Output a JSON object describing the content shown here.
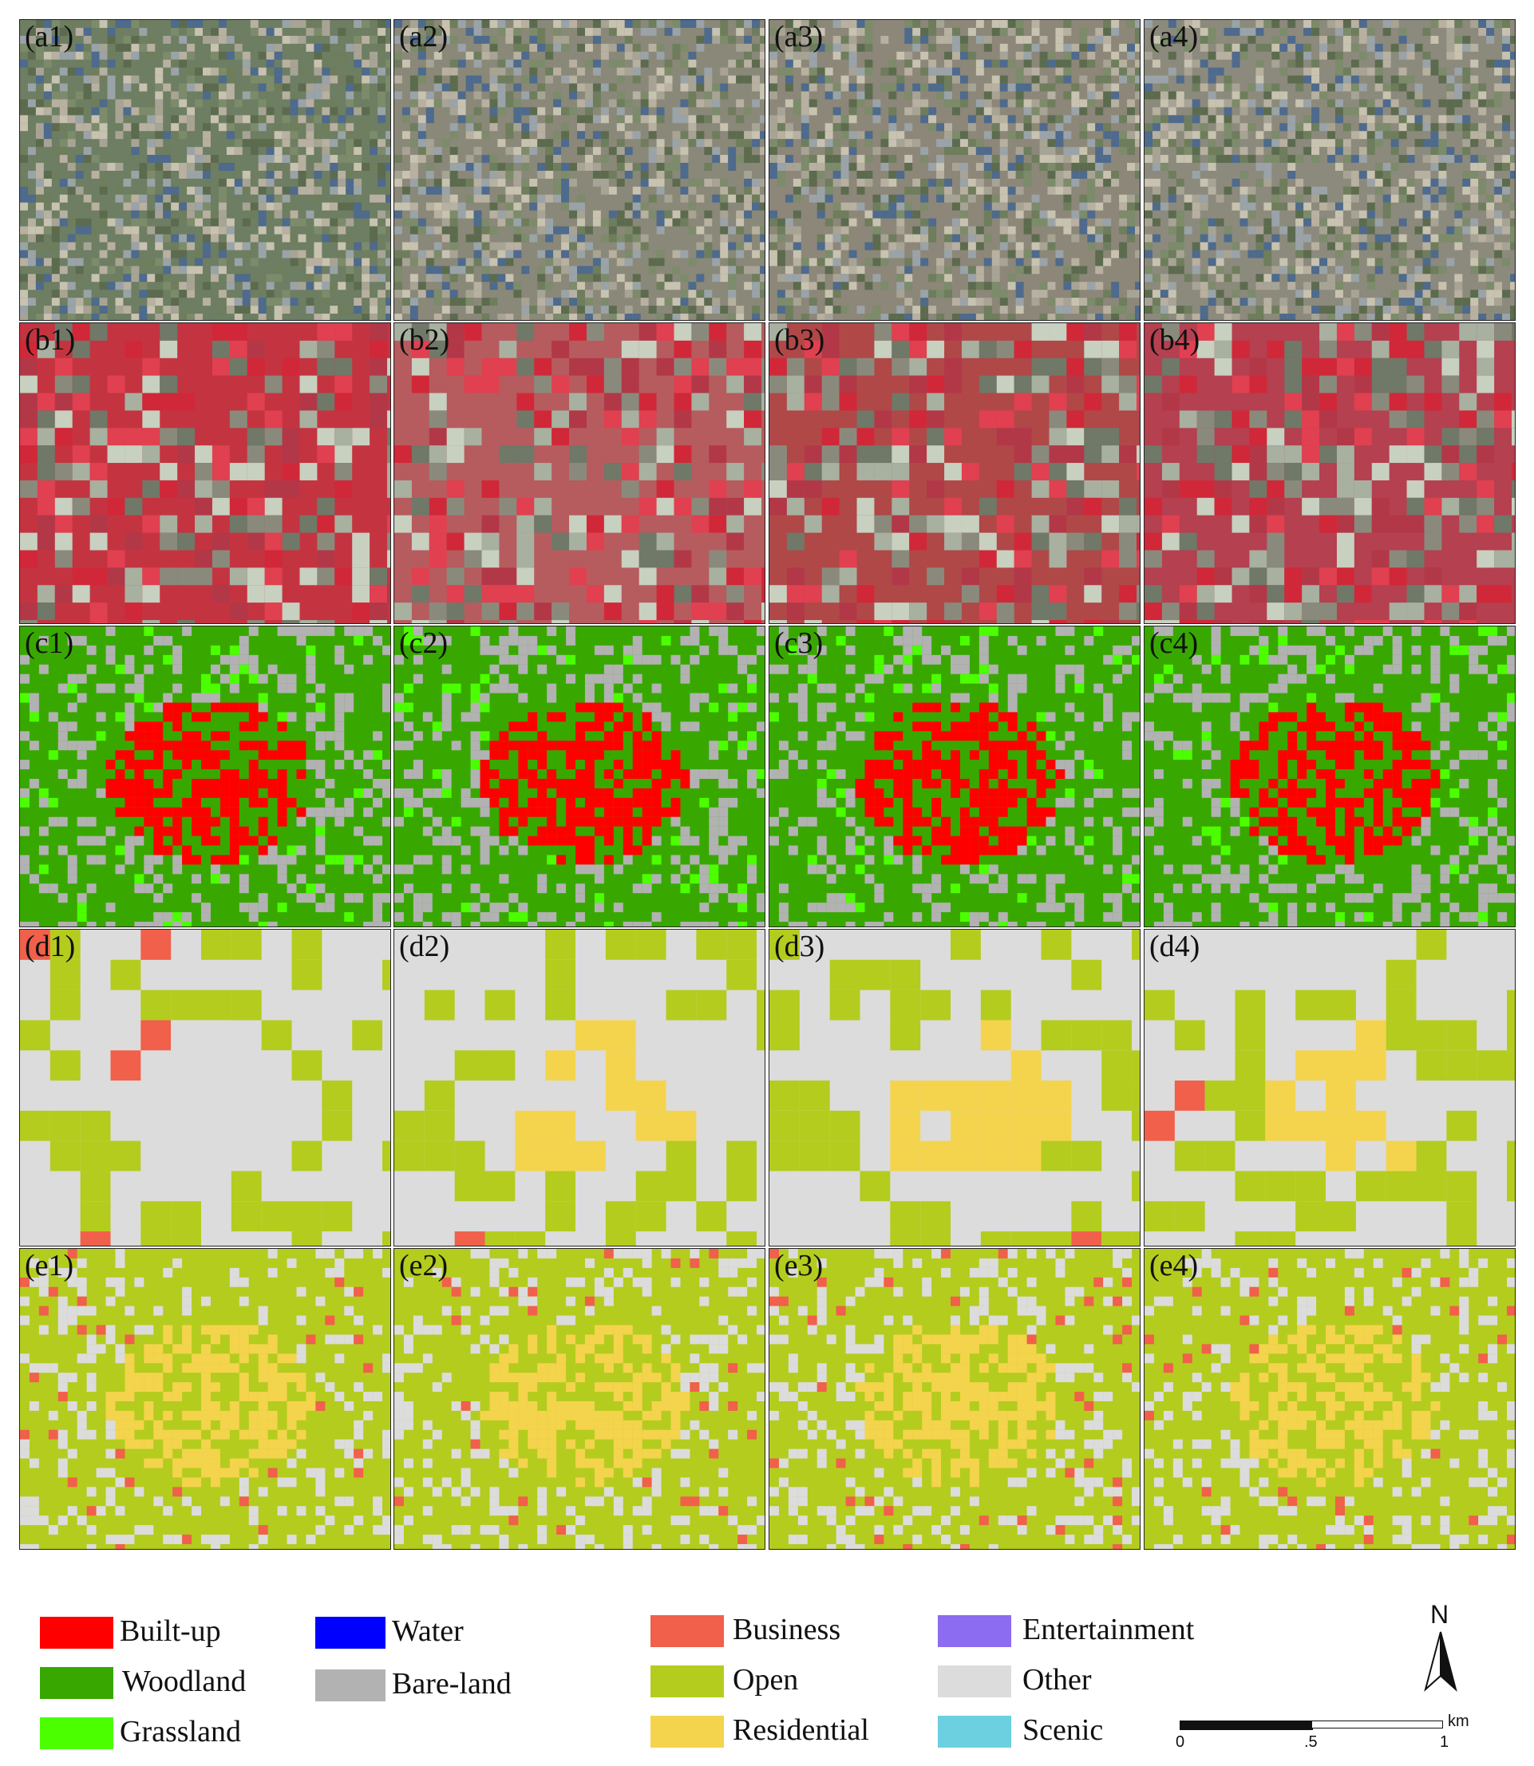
{
  "panels": [
    {
      "id": "a1",
      "label": "(a1)"
    },
    {
      "id": "a2",
      "label": "(a2)"
    },
    {
      "id": "a3",
      "label": "(a3)"
    },
    {
      "id": "a4",
      "label": "(a4)"
    },
    {
      "id": "b1",
      "label": "(b1)"
    },
    {
      "id": "b2",
      "label": "(b2)"
    },
    {
      "id": "b3",
      "label": "(b3)"
    },
    {
      "id": "b4",
      "label": "(b4)"
    },
    {
      "id": "c1",
      "label": "(c1)"
    },
    {
      "id": "c2",
      "label": "(c2)"
    },
    {
      "id": "c3",
      "label": "(c3)"
    },
    {
      "id": "c4",
      "label": "(c4)"
    },
    {
      "id": "d1",
      "label": "(d1)"
    },
    {
      "id": "d2",
      "label": "(d2)"
    },
    {
      "id": "d3",
      "label": "(d3)"
    },
    {
      "id": "d4",
      "label": "(d4)"
    },
    {
      "id": "e1",
      "label": "(e1)"
    },
    {
      "id": "e2",
      "label": "(e2)"
    },
    {
      "id": "e3",
      "label": "(e3)"
    },
    {
      "id": "e4",
      "label": "(e4)"
    }
  ],
  "legend": [
    {
      "label": "Built-up",
      "color": "#ff0000"
    },
    {
      "label": "Woodland",
      "color": "#38a800"
    },
    {
      "label": "Grassland",
      "color": "#4cff00"
    },
    {
      "label": "Water",
      "color": "#0000ff"
    },
    {
      "label": "Bare-land",
      "color": "#b2b2b2"
    },
    {
      "label": "Business",
      "color": "#f0604a"
    },
    {
      "label": "Open",
      "color": "#b4cc1e"
    },
    {
      "label": "Residential",
      "color": "#f4d44c"
    },
    {
      "label": "Entertainment",
      "color": "#8c6cf0"
    },
    {
      "label": "Other",
      "color": "#dcdcdc"
    },
    {
      "label": "Scenic",
      "color": "#6cd0e0"
    }
  ],
  "north_arrow": {
    "label": "N"
  },
  "scale_bar": {
    "ticks": [
      "0",
      ".5",
      "1"
    ],
    "unit": "km"
  }
}
